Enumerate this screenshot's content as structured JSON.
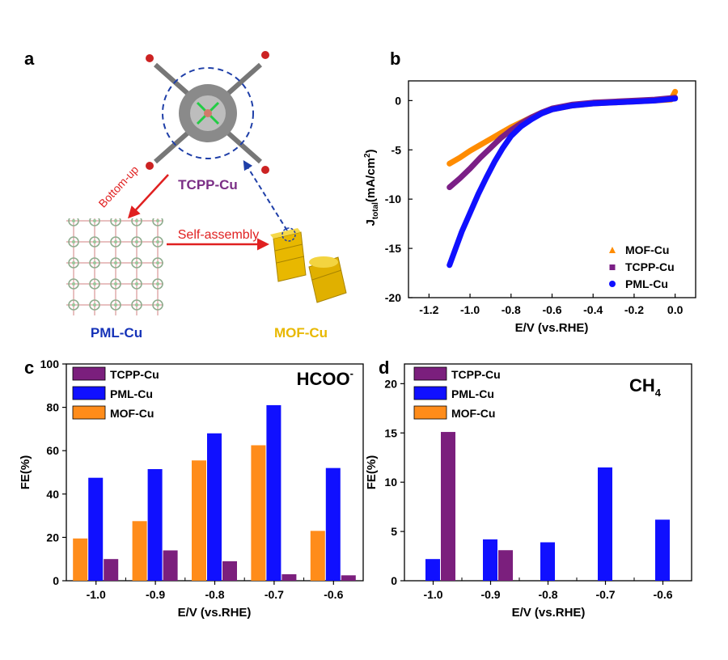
{
  "figure": {
    "panel_labels": [
      "a",
      "b",
      "c",
      "d"
    ]
  },
  "schematic": {
    "top_label": "TCPP-Cu",
    "bottom_left_label": "PML-Cu",
    "bottom_right_label": "MOF-Cu",
    "arrow_bottom_up": "Bottom-up",
    "arrow_self_assembly": "Self-assembly",
    "colors": {
      "tcpp": "#7b2f86",
      "pml": "#1633b8",
      "mof": "#e8b800",
      "arrow": "#e02020",
      "dashed": "#1f3fa8"
    }
  },
  "chart_data": [
    {
      "panel": "b",
      "type": "line",
      "xlabel": "E/V (vs.RHE)",
      "ylabel_main": "J",
      "ylabel_sub": "total",
      "ylabel_unit": "(mA/cm",
      "ylabel_sup": "2",
      "ylabel_close": ")",
      "xlim": [
        -1.3,
        0.1
      ],
      "ylim": [
        -20,
        2
      ],
      "xticks": [
        -1.2,
        -1.0,
        -0.8,
        -0.6,
        -0.4,
        -0.2,
        0.0
      ],
      "xtick_labels": [
        "-1.2",
        "-1.0",
        "-0.8",
        "-0.6",
        "-0.4",
        "-0.2",
        "0.0"
      ],
      "yticks": [
        -20,
        -15,
        -10,
        -5,
        0
      ],
      "ytick_labels": [
        "-20",
        "-15",
        "-10",
        "-5",
        "0"
      ],
      "legend": "bottom-right",
      "series": [
        {
          "name": "MOF-Cu",
          "color": "#ff8c00",
          "marker": "triangle",
          "x": [
            -1.1,
            -1.05,
            -1.0,
            -0.95,
            -0.9,
            -0.85,
            -0.8,
            -0.75,
            -0.7,
            -0.65,
            -0.6,
            -0.5,
            -0.4,
            -0.3,
            -0.2,
            -0.1,
            -0.02,
            0.0
          ],
          "y": [
            -6.4,
            -5.8,
            -5.1,
            -4.5,
            -3.9,
            -3.3,
            -2.7,
            -2.2,
            -1.7,
            -1.3,
            -0.9,
            -0.5,
            -0.3,
            -0.2,
            -0.1,
            0.0,
            0.1,
            0.9
          ]
        },
        {
          "name": "TCPP-Cu",
          "color": "#7b1f86",
          "marker": "square",
          "x": [
            -1.1,
            -1.05,
            -1.0,
            -0.95,
            -0.9,
            -0.85,
            -0.8,
            -0.75,
            -0.7,
            -0.65,
            -0.6,
            -0.5,
            -0.4,
            -0.3,
            -0.2,
            -0.1,
            0.0
          ],
          "y": [
            -8.8,
            -7.9,
            -6.9,
            -5.8,
            -4.8,
            -3.8,
            -3.0,
            -2.3,
            -1.7,
            -1.2,
            -0.8,
            -0.4,
            -0.2,
            -0.1,
            0.0,
            0.1,
            0.3
          ]
        },
        {
          "name": "PML-Cu",
          "color": "#1010ff",
          "marker": "circle",
          "x": [
            -1.1,
            -1.07,
            -1.04,
            -1.0,
            -0.96,
            -0.92,
            -0.88,
            -0.84,
            -0.8,
            -0.75,
            -0.7,
            -0.65,
            -0.6,
            -0.5,
            -0.4,
            -0.3,
            -0.2,
            -0.1,
            0.0
          ],
          "y": [
            -16.7,
            -15.0,
            -13.3,
            -11.4,
            -9.5,
            -7.8,
            -6.2,
            -4.8,
            -3.6,
            -2.6,
            -1.9,
            -1.3,
            -0.9,
            -0.5,
            -0.3,
            -0.2,
            -0.1,
            0.0,
            0.2
          ]
        }
      ]
    },
    {
      "panel": "c",
      "type": "bar",
      "annotation_main": "HCOO",
      "annotation_sup": "-",
      "xlabel": "E/V (vs.RHE)",
      "ylabel": "FE(%)",
      "ylim": [
        0,
        100
      ],
      "yticks": [
        0,
        20,
        40,
        60,
        80,
        100
      ],
      "ytick_labels": [
        "0",
        "20",
        "40",
        "60",
        "80",
        "100"
      ],
      "categories": [
        "-1.0",
        "-0.9",
        "-0.8",
        "-0.7",
        "-0.6"
      ],
      "legend": "top-left",
      "legend_order": [
        "TCPP-Cu",
        "PML-Cu",
        "MOF-Cu"
      ],
      "series": [
        {
          "name": "MOF-Cu",
          "color": "#ff8c1a",
          "values": [
            19.5,
            27.5,
            55.5,
            62.5,
            23
          ]
        },
        {
          "name": "PML-Cu",
          "color": "#1010ff",
          "values": [
            47.5,
            51.5,
            68,
            81,
            52
          ]
        },
        {
          "name": "TCPP-Cu",
          "color": "#7b1f7d",
          "values": [
            10,
            14,
            9,
            3,
            2.5
          ]
        }
      ]
    },
    {
      "panel": "d",
      "type": "bar",
      "annotation_main": "CH",
      "annotation_sub": "4",
      "xlabel": "E/V (vs.RHE)",
      "ylabel": "FE(%)",
      "ylim": [
        0,
        22
      ],
      "yticks": [
        0,
        5,
        10,
        15,
        20
      ],
      "ytick_labels": [
        "0",
        "5",
        "10",
        "15",
        "20"
      ],
      "categories": [
        "-1.0",
        "-0.9",
        "-0.8",
        "-0.7",
        "-0.6"
      ],
      "legend": "top-left",
      "legend_order": [
        "TCPP-Cu",
        "PML-Cu",
        "MOF-Cu"
      ],
      "series": [
        {
          "name": "MOF-Cu",
          "color": "#ff8c1a",
          "values": [
            0,
            0,
            0,
            0,
            0
          ]
        },
        {
          "name": "PML-Cu",
          "color": "#1010ff",
          "values": [
            2.2,
            4.2,
            3.9,
            11.5,
            6.2
          ]
        },
        {
          "name": "TCPP-Cu",
          "color": "#7b1f7d",
          "values": [
            15.1,
            3.1,
            0,
            0,
            0
          ]
        }
      ]
    }
  ]
}
